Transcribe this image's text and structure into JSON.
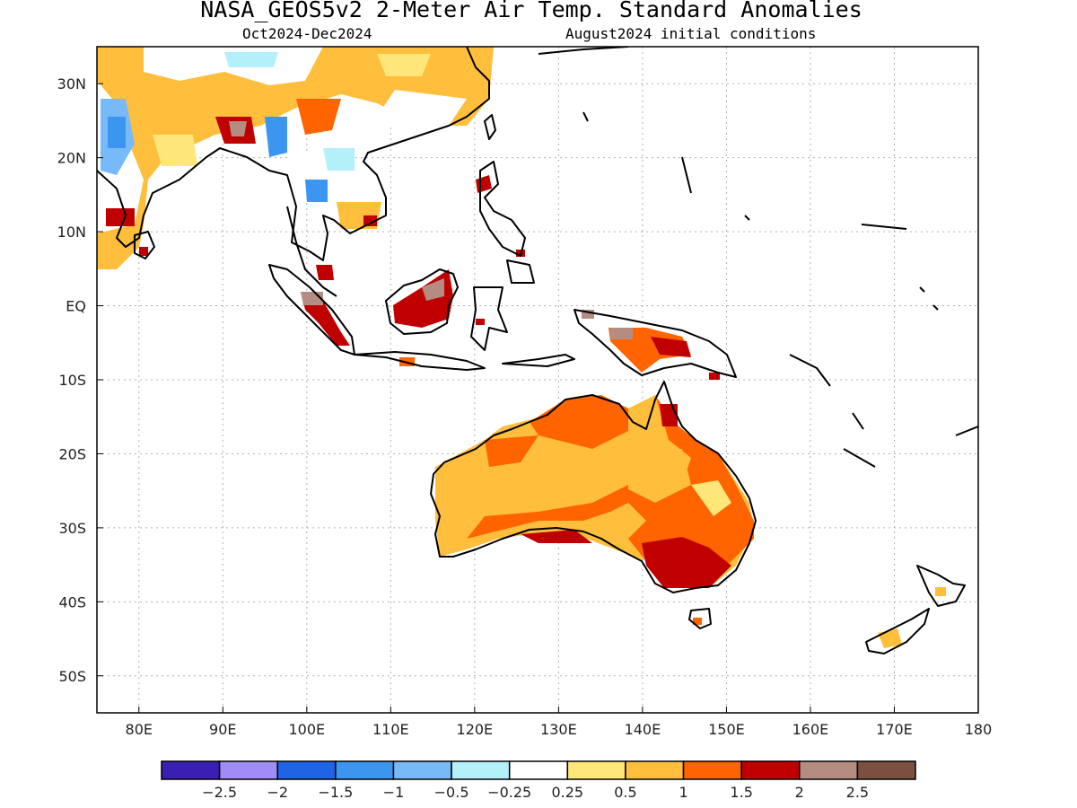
{
  "title": "NASA_GEOS5v2 2-Meter Air Temp. Standard Anomalies",
  "subtitle_left": "Oct2024-Dec2024",
  "subtitle_right": "August2024 initial conditions",
  "map": {
    "lon_range": [
      75,
      180
    ],
    "lat_range": [
      -55,
      35
    ],
    "lon_ticks": [
      "80E",
      "90E",
      "100E",
      "110E",
      "120E",
      "130E",
      "140E",
      "150E",
      "160E",
      "170E",
      "180"
    ],
    "lat_ticks": [
      "30N",
      "20N",
      "10N",
      "EQ",
      "10S",
      "20S",
      "30S",
      "40S",
      "50S"
    ],
    "grid": true
  },
  "legend": {
    "colors": [
      "#3b1fb4",
      "#a08cf4",
      "#1f64e6",
      "#3c96f0",
      "#78b9f8",
      "#b4f0fa",
      "#ffffff",
      "#ffe678",
      "#ffbe3c",
      "#ff6400",
      "#c00000",
      "#b48c82",
      "#7a5040"
    ],
    "labels": [
      "-2.5",
      "-2",
      "-1.5",
      "-1",
      "-0.5",
      "-0.25",
      "0.25",
      "0.5",
      "1",
      "1.5",
      "2",
      "2.5"
    ]
  },
  "regions": [
    {
      "name": "australia",
      "level": "1",
      "color": "#ffbe3c"
    },
    {
      "name": "southeast-australia",
      "level": "2",
      "color": "#c00000"
    },
    {
      "name": "borneo",
      "level": "2",
      "color": "#c00000"
    },
    {
      "name": "new-guinea",
      "level": "1.5",
      "color": "#ff6400"
    },
    {
      "name": "india-china",
      "level": "1",
      "color": "#ffbe3c"
    },
    {
      "name": "myanmar",
      "level": "-1",
      "color": "#3c96f0"
    }
  ]
}
